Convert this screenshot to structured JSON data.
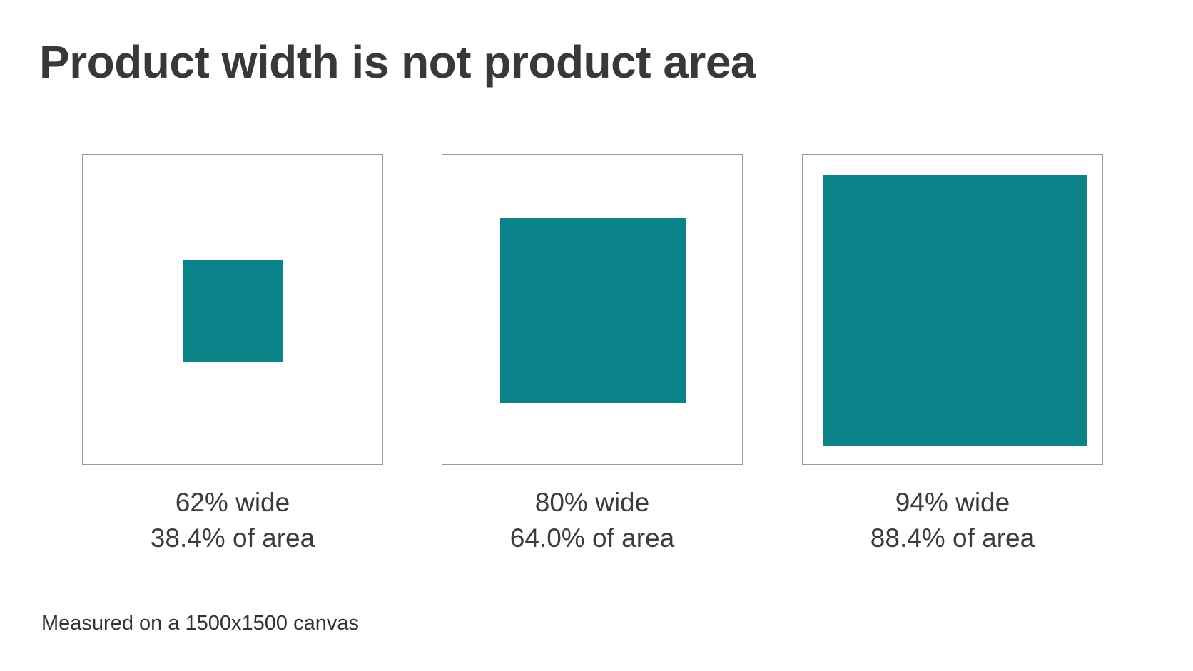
{
  "title": "Product width is not product area",
  "panels": [
    {
      "width_label": "62% wide",
      "area_label": "38.4% of area"
    },
    {
      "width_label": "80% wide",
      "area_label": "64.0% of area"
    },
    {
      "width_label": "94% wide",
      "area_label": "88.4% of area"
    }
  ],
  "footnote": "Measured on a 1500x1500 canvas"
}
